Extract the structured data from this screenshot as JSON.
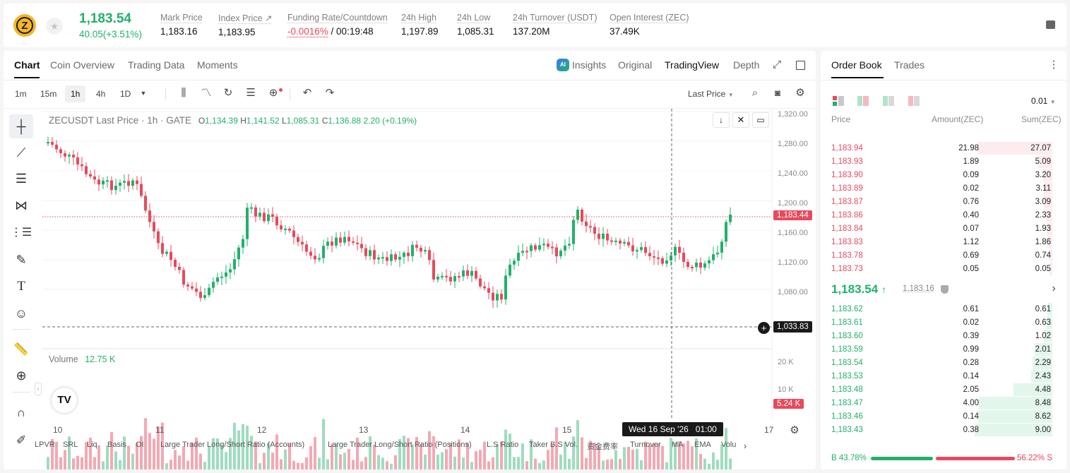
{
  "ticker": {
    "logo_glyph": "Z",
    "price": "1,183.54",
    "change": "40.05(+3.51%)",
    "colors": {
      "up": "#21b16b",
      "down": "#e8495c",
      "logo": "#f4b728"
    }
  },
  "stats": [
    {
      "label": "Mark Price",
      "value": "1,183.16"
    },
    {
      "label": "Index Price ↗",
      "value": "1,183.95"
    },
    {
      "label": "Funding Rate/Countdown",
      "value_a": "-0.0016%",
      "value_b": " / 00:19:48"
    },
    {
      "label": "24h High",
      "value": "1,197.89"
    },
    {
      "label": "24h Low",
      "value": "1,085.31"
    },
    {
      "label": "24h Turnover (USDT)",
      "value": "137.20M"
    },
    {
      "label": "Open Interest (ZEC)",
      "value": "37.49K"
    }
  ],
  "tabs": {
    "left": [
      "Chart",
      "Coin Overview",
      "Trading Data",
      "Moments"
    ],
    "right": [
      "Insights",
      "Original",
      "TradingView",
      "Depth"
    ],
    "active_left": "Chart",
    "active_right": "TradingView",
    "ai_badge": "AI"
  },
  "intervals": [
    "1m",
    "15m",
    "1h",
    "4h",
    "1D"
  ],
  "price_type": "Last Price",
  "legend": {
    "symbol": "ZECUSDT Last Price · 1h · GATE",
    "o_k": "O",
    "o": "1,134.39",
    "h_k": "H",
    "h": "1,141.52",
    "l_k": "L",
    "l": "1,085.31",
    "c_k": "C",
    "c": "1,136.88",
    "chg": "2.20 (+0.19%)"
  },
  "volume": {
    "label": "Volume",
    "value": "12.75 K",
    "cur_label": "5.24 K",
    "axis": [
      "20 K",
      "10 K"
    ]
  },
  "price_axis": [
    "1,320.00",
    "1,280.00",
    "1,240.00",
    "1,200.00",
    "1,160.00",
    "1,120.00",
    "1,080.00"
  ],
  "price_tags": {
    "last": "1,183.44",
    "cross": "1,033.83"
  },
  "date_axis": [
    "10",
    "11",
    "12",
    "13",
    "14",
    "15",
    "17"
  ],
  "crosshair_date": "Wed 16 Sep '26   01:00",
  "indicators": [
    "LPVR",
    "SRL",
    "Liq",
    "Basis",
    "OI",
    "Large Trader Long/Short Ratio (Accounts)",
    "Large Trader Long/Short Ratio (Positions)",
    "L.S Ratio",
    "Taker B.S Vol.",
    "资金费率",
    "Turnover",
    "MA",
    "EMA",
    "Volu"
  ],
  "orderbook": {
    "tabs": [
      "Order Book",
      "Trades"
    ],
    "precision": "0.01",
    "headers": [
      "Price",
      "Amount(ZEC)",
      "Sum(ZEC)"
    ],
    "asks": [
      [
        "1,183.94",
        "21.98",
        "27.07"
      ],
      [
        "1,183.93",
        "1.89",
        "5.09"
      ],
      [
        "1,183.90",
        "0.09",
        "3.20"
      ],
      [
        "1,183.89",
        "0.02",
        "3.11"
      ],
      [
        "1,183.87",
        "0.76",
        "3.09"
      ],
      [
        "1,183.86",
        "0.40",
        "2.33"
      ],
      [
        "1,183.84",
        "0.07",
        "1.93"
      ],
      [
        "1,183.83",
        "1.12",
        "1.86"
      ],
      [
        "1,183.78",
        "0.69",
        "0.74"
      ],
      [
        "1,183.73",
        "0.05",
        "0.05"
      ]
    ],
    "mid_price": "1,183.54",
    "mid_arrow": "↑",
    "mark_price": "1,183.16",
    "bids": [
      [
        "1,183.62",
        "0.61",
        "0.61"
      ],
      [
        "1,183.61",
        "0.02",
        "0.63"
      ],
      [
        "1,183.60",
        "0.39",
        "1.02"
      ],
      [
        "1,183.59",
        "0.99",
        "2.01"
      ],
      [
        "1,183.54",
        "0.28",
        "2.29"
      ],
      [
        "1,183.53",
        "0.14",
        "2.43"
      ],
      [
        "1,183.48",
        "2.05",
        "4.48"
      ],
      [
        "1,183.47",
        "4.00",
        "8.48"
      ],
      [
        "1,183.46",
        "0.14",
        "8.62"
      ],
      [
        "1,183.43",
        "0.38",
        "9.00"
      ]
    ],
    "buy_ratio": "B 43.78%",
    "sell_ratio": "56.22% S",
    "buy_fraction": 0.4378
  }
}
